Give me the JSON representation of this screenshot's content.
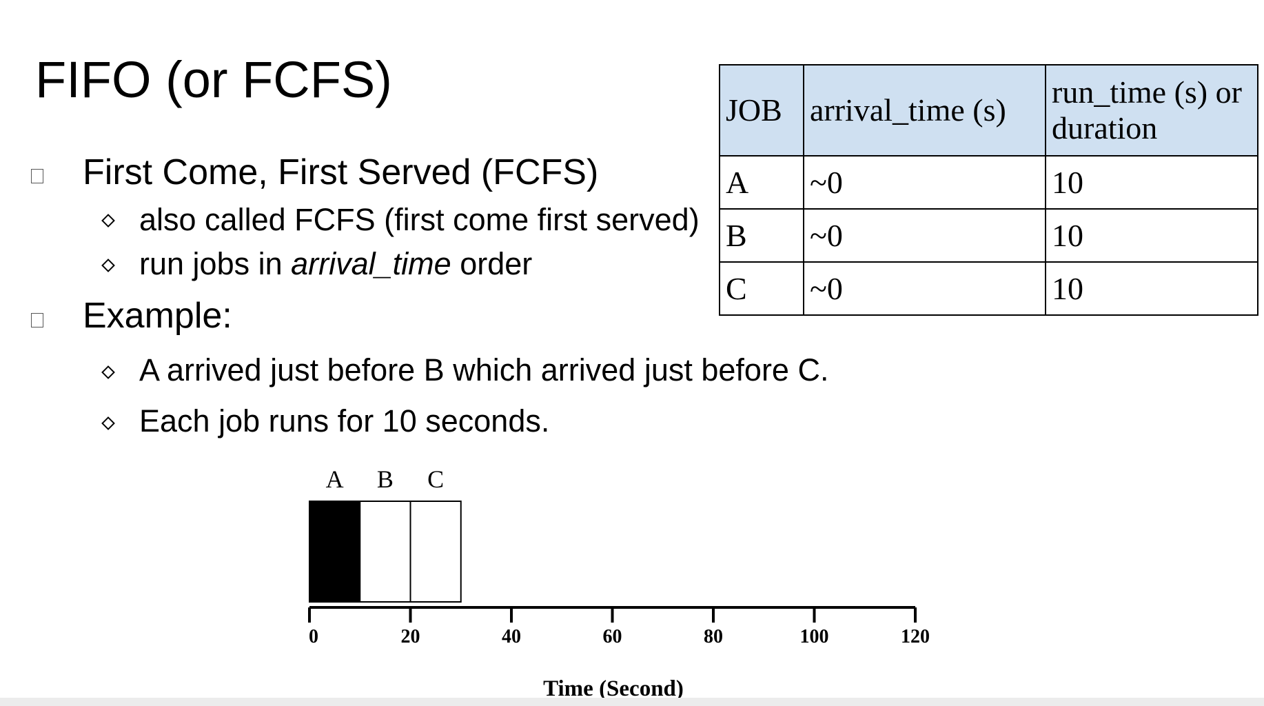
{
  "title": "FIFO (or FCFS)",
  "bullets": [
    {
      "text": "First Come, First Served (FCFS)",
      "sub": [
        {
          "prefix": "also called FCFS (first come first served)",
          "em": "",
          "suffix": ""
        },
        {
          "prefix": "run jobs in ",
          "em": "arrival_time",
          "suffix": " order"
        }
      ]
    },
    {
      "text": "Example:",
      "sub": [
        {
          "prefix": "A arrived just before B which arrived just before C.",
          "em": "",
          "suffix": ""
        },
        {
          "prefix": "Each job runs for 10 seconds.",
          "em": "",
          "suffix": ""
        }
      ]
    }
  ],
  "table": {
    "headers": [
      "JOB",
      "arrival_time (s)",
      "run_time (s) or duration"
    ],
    "rows": [
      [
        "A",
        "~0",
        "10"
      ],
      [
        "B",
        "~0",
        "10"
      ],
      [
        "C",
        "~0",
        "10"
      ]
    ],
    "header_color": "#cfe0f1"
  },
  "chart_data": {
    "type": "bar",
    "xlabel": "Time (Second)",
    "xlim": [
      0,
      120
    ],
    "ticks": [
      0,
      20,
      40,
      60,
      80,
      100,
      120
    ],
    "jobs": [
      {
        "label": "A",
        "start": 0,
        "end": 10,
        "fill": "#000000"
      },
      {
        "label": "B",
        "start": 10,
        "end": 20,
        "fill": "#ffffff"
      },
      {
        "label": "C",
        "start": 20,
        "end": 30,
        "fill": "#ffffff"
      }
    ]
  }
}
